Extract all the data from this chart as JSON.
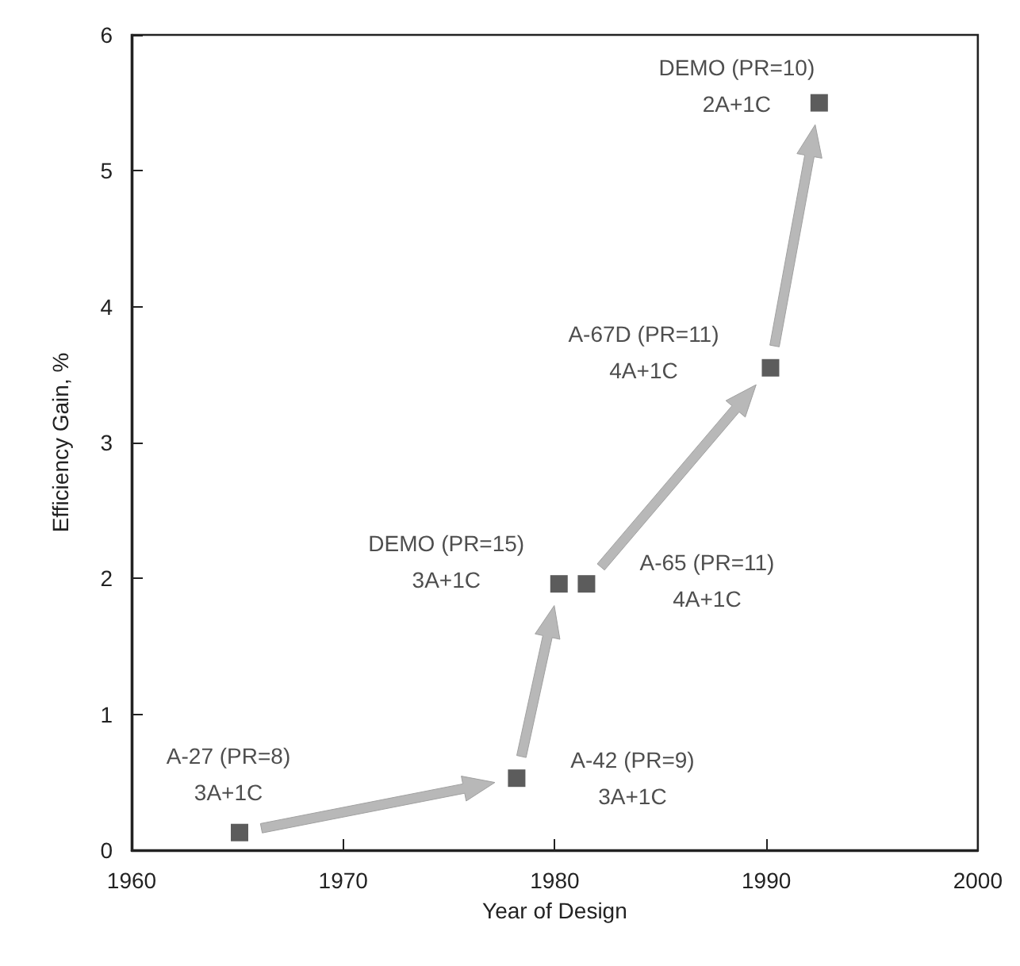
{
  "chart_data": {
    "type": "scatter",
    "xlabel": "Year of Design",
    "ylabel": "Efficiency Gain, %",
    "x": [
      1965.1,
      1978.2,
      1980.2,
      1981.5,
      1990.2,
      1992.5
    ],
    "values": [
      0.13,
      0.53,
      1.96,
      1.96,
      3.55,
      5.5
    ],
    "color": "#333333",
    "marker": "square",
    "grid": false,
    "xlim": [
      1960,
      2000
    ],
    "xticks": [
      1960,
      1970,
      1980,
      1990,
      2000
    ],
    "ylim": [
      0,
      6
    ],
    "yticks": [
      0,
      1,
      2,
      3,
      4,
      5,
      6
    ],
    "annotations": [
      {
        "text": "A-27 (PR=8)\n3A+1C",
        "x": 1965.1,
        "y": 0.13
      },
      {
        "text": "A-42 (PR=9)\n3A+1C",
        "x": 1978.2,
        "y": 0.53
      },
      {
        "text": "DEMO (PR=15)\n3A+1C",
        "x": 1980.2,
        "y": 1.96
      },
      {
        "text": "A-65 (PR=11)\n4A+1C",
        "x": 1981.5,
        "y": 1.96
      },
      {
        "text": "A-67D (PR=11)\n4A+1C",
        "x": 1990.2,
        "y": 3.55
      },
      {
        "text": "DEMO (PR=10)\n2A+1C",
        "x": 1992.5,
        "y": 5.5
      }
    ]
  }
}
